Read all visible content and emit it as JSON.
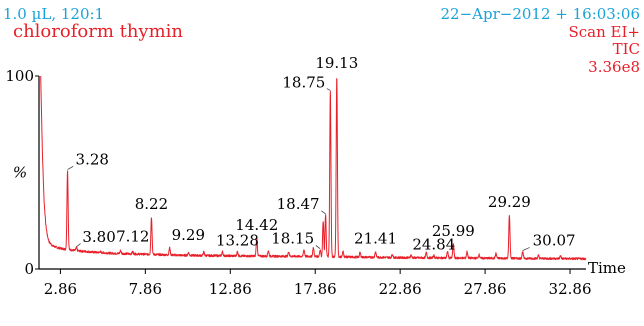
{
  "header": {
    "injection": "1.0 µL, 120:1",
    "sample_name": "chloroform thymin",
    "datetime": "22−Apr−2012 + 16:03:06",
    "scan_mode": "Scan EI+",
    "trace_type": "TIC",
    "intensity": "3.36e8"
  },
  "colors": {
    "trace": "#e8202a",
    "header_info": "#1aa3d8",
    "sample_text": "#e8202a",
    "axis": "#000000"
  },
  "chart_data": {
    "type": "line",
    "xlabel": "Time",
    "ylabel": "%",
    "xlim": [
      1.6,
      33.8
    ],
    "ylim": [
      0,
      100
    ],
    "x_ticks": [
      2.86,
      7.86,
      12.86,
      17.86,
      22.86,
      27.86,
      32.86
    ],
    "x_tick_labels": [
      "2.86",
      "7.86",
      "12.86",
      "17.86",
      "22.86",
      "27.86",
      "32.86"
    ],
    "y_ticks": [
      0,
      100
    ],
    "y_tick_labels": [
      "0",
      "100"
    ],
    "baseline": [
      [
        1.7,
        100
      ],
      [
        1.8,
        60
      ],
      [
        1.9,
        35
      ],
      [
        2.0,
        23
      ],
      [
        2.1,
        17
      ],
      [
        2.2,
        14
      ],
      [
        2.4,
        12
      ],
      [
        2.7,
        11
      ],
      [
        3.1,
        10.3
      ],
      [
        4.0,
        9.3
      ],
      [
        5.0,
        8.6
      ],
      [
        6.0,
        8.1
      ],
      [
        8.0,
        7.6
      ],
      [
        10.0,
        7.1
      ],
      [
        12.0,
        6.9
      ],
      [
        14.0,
        6.7
      ],
      [
        16.0,
        6.6
      ],
      [
        18.0,
        6.5
      ],
      [
        20.0,
        6.2
      ],
      [
        22.0,
        6.0
      ],
      [
        24.0,
        5.8
      ],
      [
        26.0,
        5.7
      ],
      [
        28.0,
        5.6
      ],
      [
        30.0,
        5.5
      ],
      [
        32.0,
        5.4
      ],
      [
        33.8,
        5.3
      ]
    ],
    "peaks": [
      {
        "rt": 3.28,
        "height": 51,
        "label": "3.28"
      },
      {
        "rt": 3.8,
        "height": 11,
        "label": "3.80"
      },
      {
        "rt": 7.12,
        "height": 9,
        "label": "7.12"
      },
      {
        "rt": 8.22,
        "height": 27,
        "label": "8.22"
      },
      {
        "rt": 9.29,
        "height": 11,
        "label": "9.29"
      },
      {
        "rt": 13.28,
        "height": 9,
        "label": "13.28"
      },
      {
        "rt": 14.42,
        "height": 16,
        "label": "14.42"
      },
      {
        "rt": 18.15,
        "height": 10,
        "label": "18.15"
      },
      {
        "rt": 18.47,
        "height": 28,
        "label": "18.47"
      },
      {
        "rt": 18.75,
        "height": 92,
        "label": "18.75"
      },
      {
        "rt": 19.13,
        "height": 100,
        "label": "19.13"
      },
      {
        "rt": 21.41,
        "height": 9,
        "label": "21.41"
      },
      {
        "rt": 24.84,
        "height": 7,
        "label": "24.84"
      },
      {
        "rt": 25.99,
        "height": 13,
        "label": "25.99"
      },
      {
        "rt": 29.29,
        "height": 28,
        "label": "29.29"
      },
      {
        "rt": 30.07,
        "height": 9,
        "label": "30.07"
      }
    ],
    "minor_peaks": [
      {
        "rt": 5.2,
        "height": 9
      },
      {
        "rt": 6.4,
        "height": 9.5
      },
      {
        "rt": 10.4,
        "height": 8.5
      },
      {
        "rt": 11.3,
        "height": 8.8
      },
      {
        "rt": 12.4,
        "height": 9
      },
      {
        "rt": 15.1,
        "height": 9.5
      },
      {
        "rt": 16.3,
        "height": 9
      },
      {
        "rt": 17.2,
        "height": 10
      },
      {
        "rt": 17.75,
        "height": 11
      },
      {
        "rt": 18.33,
        "height": 25
      },
      {
        "rt": 19.5,
        "height": 9
      },
      {
        "rt": 20.5,
        "height": 8.5
      },
      {
        "rt": 22.4,
        "height": 7.5
      },
      {
        "rt": 23.5,
        "height": 7.2
      },
      {
        "rt": 24.4,
        "height": 8.5
      },
      {
        "rt": 25.65,
        "height": 9
      },
      {
        "rt": 26.8,
        "height": 9
      },
      {
        "rt": 27.5,
        "height": 7.5
      },
      {
        "rt": 28.5,
        "height": 8
      },
      {
        "rt": 31.0,
        "height": 7
      },
      {
        "rt": 32.3,
        "height": 6.8
      }
    ]
  }
}
